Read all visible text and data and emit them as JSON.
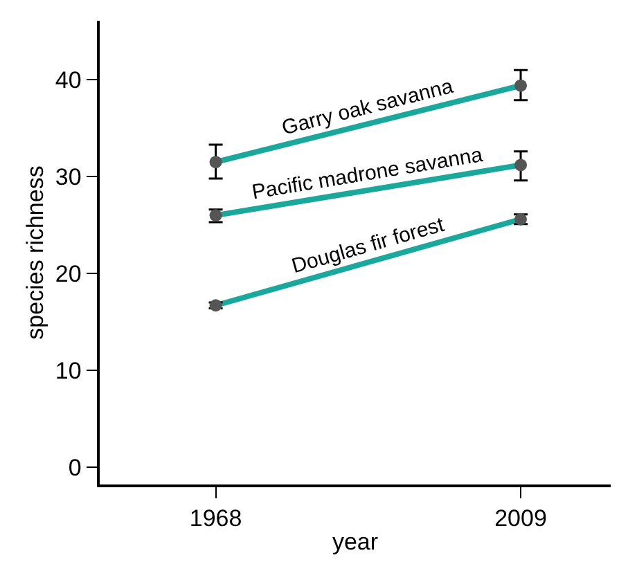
{
  "chart_data": {
    "type": "line",
    "xlabel": "year",
    "ylabel": "species richness",
    "x": [
      1968,
      2009
    ],
    "xlim": [
      1952.4,
      2021.1
    ],
    "xticks": [
      1968,
      2009
    ],
    "ylim": [
      -1.8,
      46.1
    ],
    "yticks": [
      0,
      10,
      20,
      30,
      40
    ],
    "legend": false,
    "marker": "circle",
    "line_style": "solid",
    "series": [
      {
        "name": "Garry oak savanna",
        "color": "#1aa79c",
        "colors": [
          "#555555",
          "#555555"
        ],
        "values": [
          31.5,
          39.4
        ],
        "errors": [
          [
            29.8,
            33.3
          ],
          [
            37.9,
            41.0
          ]
        ]
      },
      {
        "name": "Pacific madrone savanna",
        "color": "#1aa79c",
        "colors": [
          "#555555",
          "#555555"
        ],
        "values": [
          26.0,
          31.2
        ],
        "errors": [
          [
            25.3,
            26.6
          ],
          [
            29.6,
            32.6
          ]
        ]
      },
      {
        "name": "Douglas fir forest",
        "color": "#1aa79c",
        "colors": [
          "#555555",
          "#555555"
        ],
        "values": [
          16.7,
          25.6
        ],
        "errors": [
          [
            16.4,
            17.0
          ],
          [
            25.1,
            26.1
          ]
        ]
      }
    ]
  }
}
